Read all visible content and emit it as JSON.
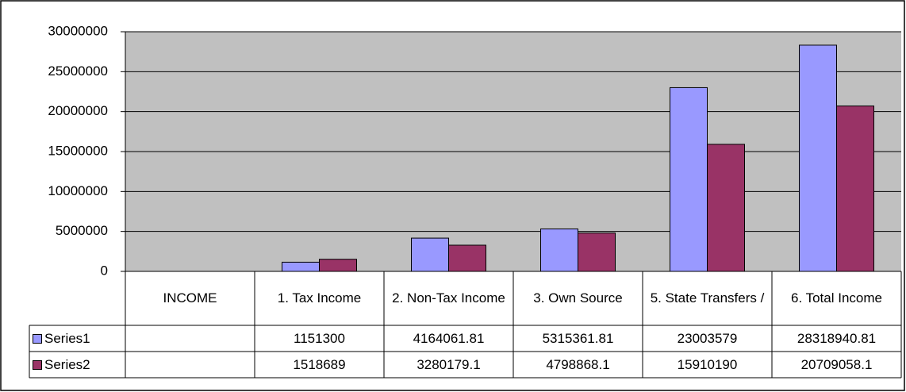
{
  "chart_data": {
    "type": "bar",
    "categories": [
      "INCOME",
      "1. Tax Income",
      "2. Non-Tax Income",
      "3. Own Source",
      "5. State Transfers /",
      "6. Total Income"
    ],
    "series": [
      {
        "name": "Series1",
        "color": "#9999ff",
        "values": [
          null,
          1151300,
          4164061.81,
          5315361.81,
          23003579,
          28318940.81
        ]
      },
      {
        "name": "Series2",
        "color": "#993366",
        "values": [
          null,
          1518689,
          3280179.1,
          4798868.1,
          15910190,
          20709058.1
        ]
      }
    ],
    "ylim": [
      0,
      30000000
    ],
    "yticks": [
      0,
      5000000,
      10000000,
      15000000,
      20000000,
      25000000,
      30000000
    ],
    "grid": true,
    "plot_background": "#c0c0c0"
  }
}
